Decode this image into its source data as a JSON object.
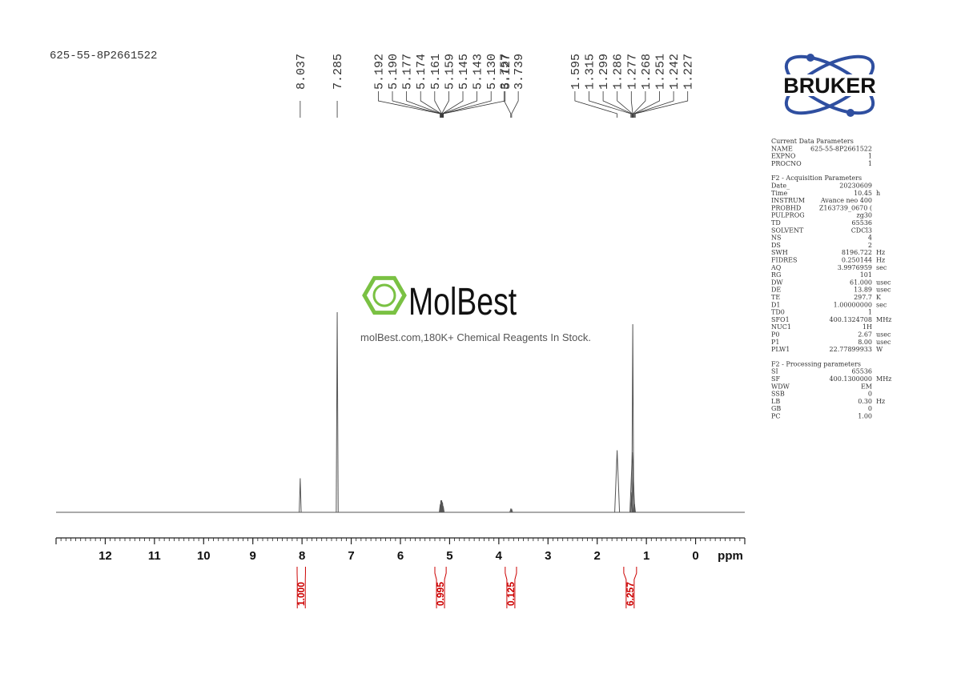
{
  "sample_id": "625-55-8P2661522",
  "watermark": {
    "brand": "MolBest",
    "tagline": "molBest.com,180K+ Chemical Reagents In Stock."
  },
  "logo": "BRUKER",
  "parameters": [
    {
      "title": "Current Data Parameters",
      "rows": [
        [
          "NAME",
          "625-55-8P2661522"
        ],
        [
          "EXPNO",
          "1"
        ],
        [
          "PROCNO",
          "1"
        ]
      ]
    },
    {
      "title": "F2 - Acquisition Parameters",
      "rows": [
        [
          "Date_",
          "20230609"
        ],
        [
          "Time",
          "10.45",
          "h"
        ],
        [
          "INSTRUM",
          "Avance neo 400"
        ],
        [
          "PROBHD",
          "Z163739_0670 ("
        ],
        [
          "PULPROG",
          "zg30"
        ],
        [
          "TD",
          "65536"
        ],
        [
          "SOLVENT",
          "CDCl3"
        ],
        [
          "NS",
          "4"
        ],
        [
          "DS",
          "2"
        ],
        [
          "SWH",
          "8196.722",
          "Hz"
        ],
        [
          "FIDRES",
          "0.250144",
          "Hz"
        ],
        [
          "AQ",
          "3.9976959",
          "sec"
        ],
        [
          "RG",
          "101"
        ],
        [
          "DW",
          "61.000",
          "usec"
        ],
        [
          "DE",
          "13.89",
          "usec"
        ],
        [
          "TE",
          "297.7",
          "K"
        ],
        [
          "D1",
          "1.00000000",
          "sec"
        ],
        [
          "TD0",
          "1"
        ],
        [
          "SFO1",
          "400.1324708",
          "MHz"
        ],
        [
          "NUC1",
          "1H"
        ],
        [
          "P0",
          "2.67",
          "usec"
        ],
        [
          "P1",
          "8.00",
          "usec"
        ],
        [
          "PLW1",
          "22.77899933",
          "W"
        ]
      ]
    },
    {
      "title": "F2 - Processing parameters",
      "rows": [
        [
          "SI",
          "65536"
        ],
        [
          "SF",
          "400.1300000",
          "MHz"
        ],
        [
          "WDW",
          "EM"
        ],
        [
          "SSB",
          "0"
        ],
        [
          "LB",
          "0.30",
          "Hz"
        ],
        [
          "GB",
          "0"
        ],
        [
          "PC",
          "1.00"
        ]
      ]
    }
  ],
  "chart_data": {
    "type": "nmr",
    "x_label": "ppm",
    "xlim": [
      13,
      -1
    ],
    "xticks": [
      12,
      11,
      10,
      9,
      8,
      7,
      6,
      5,
      4,
      3,
      2,
      1,
      0
    ],
    "ylim": [
      0,
      100
    ],
    "color": "#555555",
    "peaks": [
      {
        "ppm": 8.037,
        "height": 17
      },
      {
        "ppm": 7.285,
        "height": 100
      },
      {
        "ppm": 5.19,
        "height": 4
      },
      {
        "ppm": 5.177,
        "height": 6
      },
      {
        "ppm": 5.161,
        "height": 6
      },
      {
        "ppm": 5.145,
        "height": 5
      },
      {
        "ppm": 5.13,
        "height": 3
      },
      {
        "ppm": 3.757,
        "height": 1.5
      },
      {
        "ppm": 3.739,
        "height": 1.5
      },
      {
        "ppm": 1.595,
        "height": 31
      },
      {
        "ppm": 1.299,
        "height": 10
      },
      {
        "ppm": 1.286,
        "height": 30
      },
      {
        "ppm": 1.277,
        "height": 94
      },
      {
        "ppm": 1.268,
        "height": 20
      },
      {
        "ppm": 1.251,
        "height": 6
      },
      {
        "ppm": 1.242,
        "height": 4
      }
    ],
    "peak_labels": [
      [
        {
          "value": 8.037,
          "label": "8.037"
        }
      ],
      [
        {
          "value": 7.285,
          "label": "7.285"
        }
      ],
      [
        {
          "value": 5.192,
          "label": "5.192"
        },
        {
          "value": 5.19,
          "label": "5.190"
        },
        {
          "value": 5.177,
          "label": "5.177"
        },
        {
          "value": 5.174,
          "label": "5.174"
        },
        {
          "value": 5.161,
          "label": "5.161"
        },
        {
          "value": 5.159,
          "label": "5.159"
        },
        {
          "value": 5.145,
          "label": "5.145"
        },
        {
          "value": 5.143,
          "label": "5.143"
        },
        {
          "value": 5.13,
          "label": "5.130"
        },
        {
          "value": 5.127,
          "label": "5.127"
        }
      ],
      [
        {
          "value": 3.757,
          "label": "3.757"
        },
        {
          "value": 3.739,
          "label": "3.739"
        }
      ],
      [
        {
          "value": 1.595,
          "label": "1.595"
        },
        {
          "value": 1.315,
          "label": "1.315"
        },
        {
          "value": 1.299,
          "label": "1.299"
        },
        {
          "value": 1.286,
          "label": "1.286"
        },
        {
          "value": 1.277,
          "label": "1.277"
        },
        {
          "value": 1.268,
          "label": "1.268"
        },
        {
          "value": 1.251,
          "label": "1.251"
        },
        {
          "value": 1.242,
          "label": "1.242"
        },
        {
          "value": 1.227,
          "label": "1.227"
        }
      ]
    ],
    "integrals": [
      {
        "from": 8.1,
        "to": 7.93,
        "value": 1.0,
        "label": "1.000"
      },
      {
        "from": 5.3,
        "to": 5.07,
        "value": 0.995,
        "label": "0.995"
      },
      {
        "from": 3.87,
        "to": 3.64,
        "value": 0.125,
        "label": "0.125"
      },
      {
        "from": 1.46,
        "to": 1.2,
        "value": 6.257,
        "label": "6.257"
      }
    ]
  }
}
